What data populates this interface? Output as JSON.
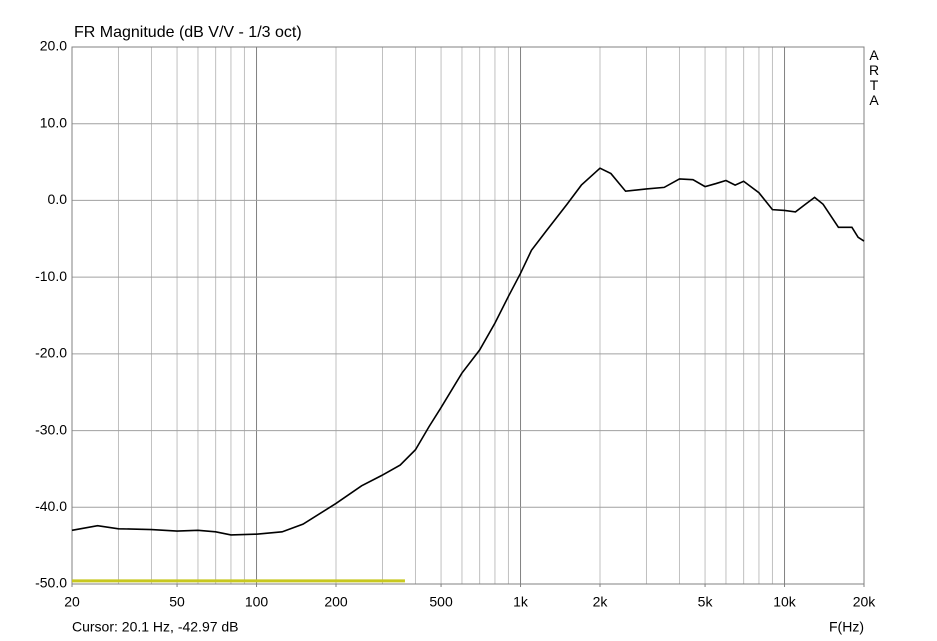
{
  "chart_data": {
    "type": "line",
    "title": "FR Magnitude (dB V/V - 1/3 oct)",
    "watermark": "ARTA",
    "cursor_text": "Cursor: 20.1 Hz, -42.97 dB",
    "x_label": "F(Hz)",
    "x_scale": "log",
    "minor_grid": true,
    "xlim": [
      20,
      20000
    ],
    "ylim": [
      -50,
      20
    ],
    "xticks": [
      20,
      50,
      100,
      200,
      500,
      {
        "value": 1000,
        "label": "1k"
      },
      {
        "value": 2000,
        "label": "2k"
      },
      {
        "value": 5000,
        "label": "5k"
      },
      {
        "value": 10000,
        "label": "10k"
      },
      {
        "value": 20000,
        "label": "20k"
      }
    ],
    "yticks": [
      {
        "value": -50,
        "label": "-50.0"
      },
      {
        "value": -40,
        "label": "-40.0"
      },
      {
        "value": -30,
        "label": "-30.0"
      },
      {
        "value": -20,
        "label": "-20.0"
      },
      {
        "value": -10,
        "label": "-10.0"
      },
      {
        "value": 0,
        "label": "0.0"
      },
      {
        "value": 10,
        "label": "10.0"
      },
      {
        "value": 20,
        "label": "20.0"
      }
    ],
    "x": [
      20,
      25,
      30,
      40,
      50,
      60,
      70,
      80,
      100,
      125,
      150,
      200,
      250,
      300,
      350,
      400,
      450,
      500,
      600,
      700,
      800,
      900,
      1000,
      1100,
      1250,
      1500,
      1700,
      2000,
      2200,
      2500,
      3000,
      3500,
      4000,
      4500,
      5000,
      5500,
      6000,
      6500,
      7000,
      8000,
      9000,
      10000,
      11000,
      12000,
      13000,
      14000,
      16000,
      18000,
      19000,
      20000
    ],
    "series": [
      {
        "color": "#000000",
        "values": [
          -43.0,
          -42.4,
          -42.8,
          -42.9,
          -43.1,
          -43.0,
          -43.2,
          -43.6,
          -43.5,
          -43.2,
          -42.2,
          -39.5,
          -37.2,
          -35.8,
          -34.5,
          -32.5,
          -29.5,
          -27.0,
          -22.5,
          -19.5,
          -16.0,
          -12.5,
          -9.5,
          -6.5,
          -4.0,
          -0.5,
          2.0,
          4.2,
          3.5,
          1.2,
          1.5,
          1.7,
          2.8,
          2.7,
          1.8,
          2.2,
          2.6,
          2.0,
          2.5,
          1.0,
          -1.2,
          -1.3,
          -1.5,
          -0.5,
          0.4,
          -0.5,
          -3.5,
          -3.5,
          -4.8,
          -5.3
        ]
      }
    ],
    "highlight": {
      "x": [
        20,
        365
      ],
      "y": -49.6,
      "color": "#c8c820"
    }
  }
}
